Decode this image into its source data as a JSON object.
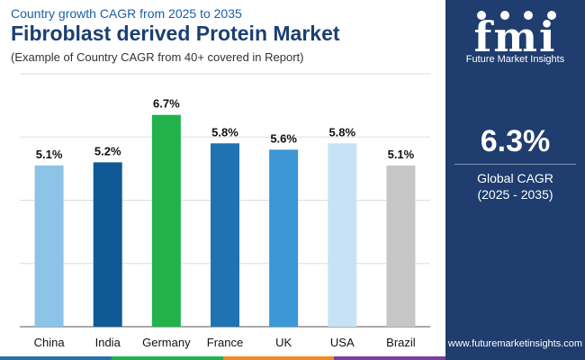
{
  "header": {
    "supertitle": "Country growth CAGR from 2025 to 2035",
    "title": "Fibroblast derived Protein Market",
    "subtitle": "(Example of Country CAGR from 40+ covered in Report)"
  },
  "panel": {
    "logo_word": "fmi",
    "logo_sub": "Future Market Insights",
    "kpi_value": "6.3%",
    "kpi_label": "Global CAGR",
    "kpi_period": "(2025 - 2035)",
    "url": "www.futuremarketinsights.com",
    "bg_color": "#1f3d6e"
  },
  "chart_data": {
    "type": "bar",
    "categories": [
      "China",
      "India",
      "Germany",
      "France",
      "UK",
      "USA",
      "Brazil"
    ],
    "values": [
      5.1,
      5.2,
      6.7,
      5.8,
      5.6,
      5.8,
      5.1
    ],
    "value_labels": [
      "5.1%",
      "5.2%",
      "6.7%",
      "5.8%",
      "5.6%",
      "5.8%",
      "5.1%"
    ],
    "colors": [
      "#8cc3e6",
      "#0f5a96",
      "#22b24c",
      "#1f73b0",
      "#3b97d6",
      "#c7e2f5",
      "#c6c6c6"
    ],
    "ylim": [
      0,
      8
    ],
    "grid": true,
    "legend": "none"
  },
  "bottom_strip_colors": [
    "#1f73b0",
    "#22b24c",
    "#f08a24",
    "#7a3fa0"
  ]
}
